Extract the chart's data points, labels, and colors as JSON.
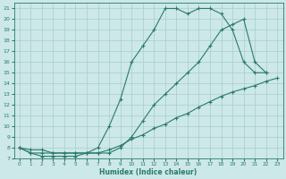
{
  "background_color": "#cce8e8",
  "grid_color": "#aacccc",
  "line_color": "#2a7a6a",
  "xlabel": "Humidex (Indice chaleur)",
  "xlim": [
    -0.5,
    23.5
  ],
  "ylim": [
    7,
    21.5
  ],
  "yticks": [
    7,
    8,
    9,
    10,
    11,
    12,
    13,
    14,
    15,
    16,
    17,
    18,
    19,
    20,
    21
  ],
  "xticks": [
    0,
    1,
    2,
    3,
    4,
    5,
    6,
    7,
    8,
    9,
    10,
    11,
    12,
    13,
    14,
    15,
    16,
    17,
    18,
    19,
    20,
    21,
    22,
    23
  ],
  "line1_x": [
    0,
    1,
    2,
    3,
    4,
    5,
    6,
    7,
    8,
    9,
    10,
    11,
    12,
    13,
    14,
    15,
    16,
    17,
    18,
    19,
    20,
    21,
    22
  ],
  "line1_y": [
    8,
    7.5,
    7.2,
    7.2,
    7.2,
    7.2,
    7.5,
    8.0,
    10.0,
    12.5,
    16.0,
    17.5,
    19.0,
    21.0,
    21.0,
    20.5,
    21.0,
    21.0,
    20.5,
    19.0,
    16.0,
    15.0,
    15.0
  ],
  "line2_x": [
    0,
    1,
    2,
    3,
    4,
    5,
    6,
    7,
    8,
    9,
    10,
    11,
    12,
    13,
    14,
    15,
    16,
    17,
    18,
    19,
    20,
    21,
    22
  ],
  "line2_y": [
    8,
    7.5,
    7.5,
    7.5,
    7.5,
    7.5,
    7.5,
    7.5,
    7.5,
    8.0,
    9.0,
    10.5,
    12.0,
    13.0,
    14.0,
    15.0,
    16.0,
    17.5,
    19.0,
    19.5,
    20.0,
    16.0,
    15.0
  ],
  "line3_x": [
    0,
    1,
    2,
    3,
    4,
    5,
    6,
    7,
    8,
    9,
    10,
    11,
    12,
    13,
    14,
    15,
    16,
    17,
    18,
    19,
    20,
    21,
    22,
    23
  ],
  "line3_y": [
    8,
    7.8,
    7.8,
    7.5,
    7.5,
    7.5,
    7.5,
    7.5,
    7.8,
    8.2,
    8.8,
    9.2,
    9.8,
    10.2,
    10.8,
    11.2,
    11.8,
    12.3,
    12.8,
    13.2,
    13.5,
    13.8,
    14.2,
    14.5
  ]
}
